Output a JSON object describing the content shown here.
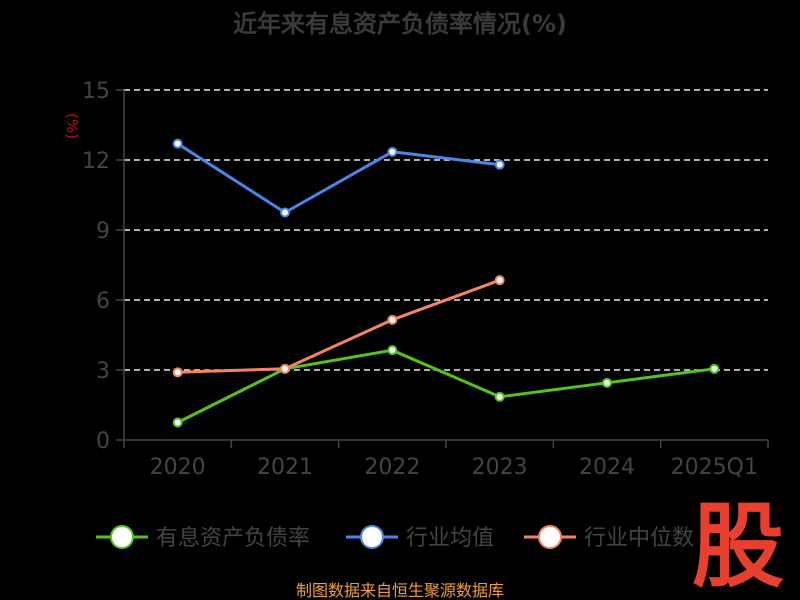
{
  "chart_data": {
    "type": "line",
    "title": "近年来有息资产负债率情况(%)",
    "ylabel": "(%)",
    "xlabel": "",
    "categories": [
      "2020",
      "2021",
      "2022",
      "2023",
      "2024",
      "2025Q1"
    ],
    "ylim": [
      0,
      15
    ],
    "yticks": [
      0,
      3,
      6,
      9,
      12,
      15
    ],
    "grid": true,
    "legend_position": "bottom",
    "series": [
      {
        "name": "有息资产负债率",
        "color": "#52c41a",
        "values": [
          0.75,
          3.05,
          3.85,
          1.85,
          2.45,
          3.05
        ]
      },
      {
        "name": "行业均值",
        "color": "#4a86e8",
        "values": [
          12.7,
          9.75,
          12.35,
          11.8,
          null,
          null
        ]
      },
      {
        "name": "行业中位数",
        "color": "#f4845f",
        "values": [
          2.9,
          3.05,
          5.15,
          6.85,
          null,
          null
        ]
      }
    ]
  },
  "footer": {
    "source": "制图数据来自恒生聚源数据库",
    "watermark": "股"
  }
}
